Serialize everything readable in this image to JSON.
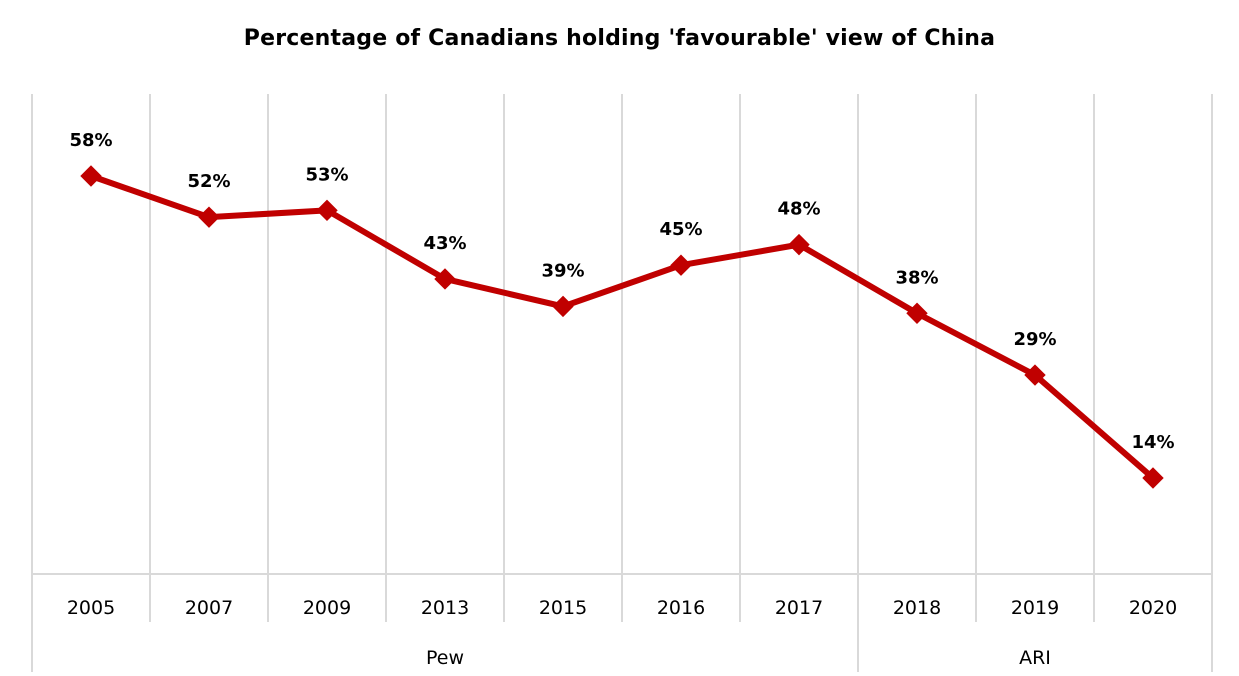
{
  "chart_data": {
    "type": "line",
    "title": "Percentage of Canadians holding 'favourable' view of China",
    "categories": [
      "2005",
      "2007",
      "2009",
      "2013",
      "2015",
      "2016",
      "2017",
      "2018",
      "2019",
      "2020"
    ],
    "series": [
      {
        "values": [
          58,
          52,
          53,
          43,
          39,
          45,
          48,
          38,
          29,
          14
        ],
        "labels": [
          "58%",
          "52%",
          "53%",
          "43%",
          "39%",
          "45%",
          "48%",
          "38%",
          "29%",
          "14%"
        ],
        "color": "#c00000",
        "marker": "diamond"
      }
    ],
    "category_groups": [
      {
        "label": "Pew",
        "categories": [
          "2005",
          "2007",
          "2009",
          "2013",
          "2015",
          "2016",
          "2017"
        ]
      },
      {
        "label": "ARI",
        "categories": [
          "2018",
          "2019",
          "2020"
        ]
      }
    ],
    "xlabel": "",
    "ylabel": "",
    "ylim": [
      0,
      70
    ],
    "grid": "vertical",
    "legend": "none",
    "colors": {
      "line": "#c00000",
      "grid": "#d9d9d9",
      "text": "#000000"
    }
  }
}
